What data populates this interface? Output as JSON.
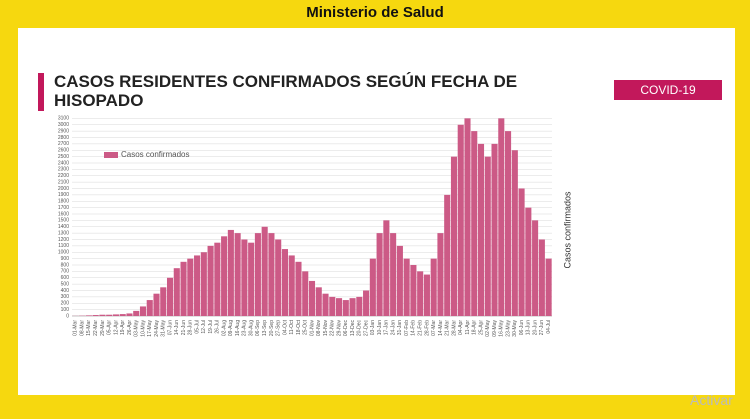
{
  "header": "Ministerio de Salud",
  "badge": "COVID-19",
  "watermark": "Activar",
  "chart_data": {
    "type": "bar",
    "title": "CASOS RESIDENTES CONFIRMADOS SEGÚN FECHA DE HISOPADO",
    "y_label": "Casos confirmados",
    "categories": [
      "01-Mar",
      "08-Mar",
      "15-Mar",
      "22-Mar",
      "29-Mar",
      "05-Apr",
      "12-Apr",
      "19-Apr",
      "26-Apr",
      "03-May",
      "10-May",
      "17-May",
      "24-May",
      "31-May",
      "07-Jun",
      "14-Jun",
      "21-Jun",
      "28-Jun",
      "05-Jul",
      "12-Jul",
      "19-Jul",
      "26-Jul",
      "02-Aug",
      "09-Aug",
      "16-Aug",
      "23-Aug",
      "30-Aug",
      "06-Sep",
      "13-Sep",
      "20-Sep",
      "27-Sep",
      "04-Oct",
      "11-Oct",
      "18-Oct",
      "25-Oct",
      "01-Nov",
      "08-Nov",
      "15-Nov",
      "22-Nov",
      "29-Nov",
      "06-Dec",
      "13-Dec",
      "20-Dec",
      "27-Dec",
      "03-Jan",
      "10-Jan",
      "17-Jan",
      "24-Jan",
      "31-Jan",
      "07-Feb",
      "14-Feb",
      "21-Feb",
      "28-Feb",
      "07-Mar",
      "14-Mar",
      "21-Mar",
      "28-Mar",
      "04-Apr",
      "11-Apr",
      "18-Apr",
      "25-Apr",
      "02-May",
      "09-May",
      "16-May",
      "23-May",
      "30-May",
      "06-Jun",
      "13-Jun",
      "20-Jun",
      "27-Jun",
      "04-Jul"
    ],
    "series": [
      {
        "name": "Casos confirmados",
        "color": "#cc5a86",
        "values": [
          2,
          5,
          10,
          15,
          20,
          20,
          25,
          30,
          40,
          80,
          150,
          250,
          350,
          450,
          600,
          750,
          850,
          900,
          950,
          1000,
          1100,
          1150,
          1250,
          1350,
          1300,
          1200,
          1150,
          1300,
          1400,
          1300,
          1200,
          1050,
          950,
          850,
          700,
          550,
          450,
          350,
          300,
          280,
          250,
          280,
          300,
          400,
          900,
          1300,
          1500,
          1300,
          1100,
          900,
          800,
          700,
          650,
          900,
          1300,
          1900,
          2500,
          3000,
          3100,
          2900,
          2700,
          2500,
          2700,
          3100,
          2900,
          2600,
          2000,
          1700,
          1500,
          1200,
          900
        ]
      }
    ],
    "ylim": [
      0,
      3200
    ],
    "yticks": [
      0,
      100,
      200,
      300,
      400,
      500,
      600,
      700,
      800,
      900,
      1000,
      1100,
      1200,
      1300,
      1400,
      1500,
      1600,
      1700,
      1800,
      1900,
      2000,
      2100,
      2200,
      2300,
      2400,
      2500,
      2600,
      2700,
      2800,
      2900,
      3000,
      3100
    ],
    "grid": true
  }
}
